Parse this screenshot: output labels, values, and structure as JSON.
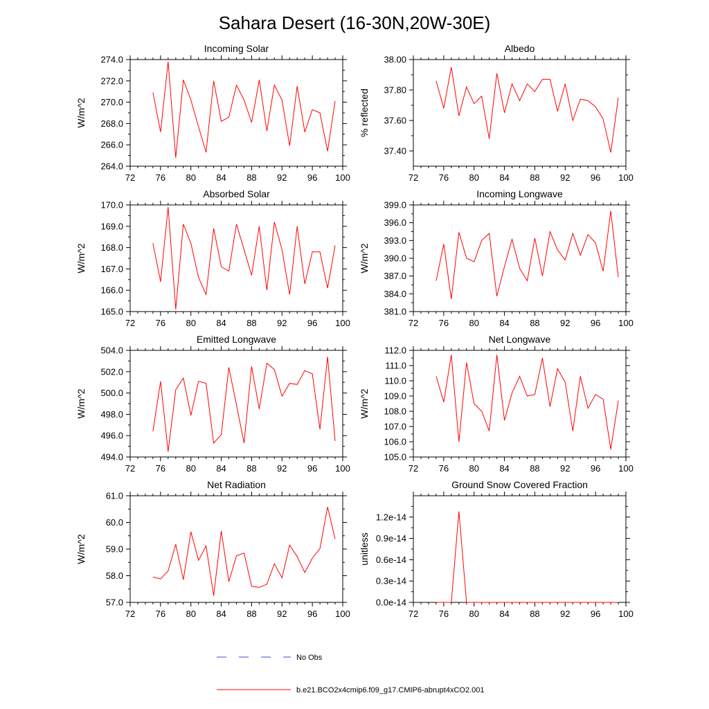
{
  "figure": {
    "title": "Sahara Desert (16-30N,20W-30E)",
    "legend": [
      {
        "label": "No Obs",
        "color": "#3a4fd0",
        "style": "dashed"
      },
      {
        "label": "b.e21.BCO2x4cmip6.f09_g17.CMIP6-abrupt4xCO2.001",
        "color": "#ff0000",
        "style": "solid"
      }
    ]
  },
  "chart_data": [
    {
      "type": "line",
      "title": "Incoming Solar",
      "ylabel": "W/m^2",
      "xlabel": "",
      "xlim": [
        72,
        100
      ],
      "xticks": [
        "72",
        "76",
        "80",
        "84",
        "88",
        "92",
        "96",
        "100"
      ],
      "ylim": [
        264,
        274
      ],
      "yticks": [
        "264.0",
        "266.0",
        "268.0",
        "270.0",
        "272.0",
        "274.0"
      ],
      "x": [
        75,
        76,
        77,
        78,
        79,
        80,
        81,
        82,
        83,
        84,
        85,
        86,
        87,
        88,
        89,
        90,
        91,
        92,
        93,
        94,
        95,
        96,
        97,
        98,
        99
      ],
      "series": [
        {
          "name": "b.e21.BCO2x4cmip6.f09_g17.CMIP6-abrupt4xCO2.001",
          "color": "#ff0000",
          "values": [
            270.9,
            267.2,
            273.8,
            264.8,
            272.1,
            270.2,
            267.7,
            265.3,
            272.0,
            268.2,
            268.6,
            271.6,
            270.2,
            268.1,
            272.1,
            267.3,
            271.6,
            270.2,
            265.9,
            271.5,
            267.2,
            269.3,
            269.0,
            265.4,
            270.1
          ]
        }
      ]
    },
    {
      "type": "line",
      "title": "Albedo",
      "ylabel": "% reflected",
      "xlabel": "",
      "xlim": [
        72,
        100
      ],
      "xticks": [
        "72",
        "76",
        "80",
        "84",
        "88",
        "92",
        "96",
        "100"
      ],
      "ylim": [
        37.3,
        38.0
      ],
      "yticks": [
        "37.40",
        "37.60",
        "37.80",
        "38.00"
      ],
      "x": [
        75,
        76,
        77,
        78,
        79,
        80,
        81,
        82,
        83,
        84,
        85,
        86,
        87,
        88,
        89,
        90,
        91,
        92,
        93,
        94,
        95,
        96,
        97,
        98,
        99
      ],
      "series": [
        {
          "name": "b.e21.BCO2x4cmip6.f09_g17.CMIP6-abrupt4xCO2.001",
          "color": "#ff0000",
          "values": [
            37.86,
            37.68,
            37.95,
            37.63,
            37.82,
            37.71,
            37.76,
            37.48,
            37.91,
            37.65,
            37.84,
            37.73,
            37.84,
            37.79,
            37.87,
            37.87,
            37.66,
            37.84,
            37.6,
            37.74,
            37.73,
            37.69,
            37.61,
            37.39,
            37.75
          ]
        }
      ]
    },
    {
      "type": "line",
      "title": "Absorbed Solar",
      "ylabel": "W/m^2",
      "xlabel": "",
      "xlim": [
        72,
        100
      ],
      "xticks": [
        "72",
        "76",
        "80",
        "84",
        "88",
        "92",
        "96",
        "100"
      ],
      "ylim": [
        165,
        170
      ],
      "yticks": [
        "165.0",
        "166.0",
        "167.0",
        "168.0",
        "169.0",
        "170.0"
      ],
      "x": [
        75,
        76,
        77,
        78,
        79,
        80,
        81,
        82,
        83,
        84,
        85,
        86,
        87,
        88,
        89,
        90,
        91,
        92,
        93,
        94,
        95,
        96,
        97,
        98,
        99
      ],
      "series": [
        {
          "name": "b.e21.BCO2x4cmip6.f09_g17.CMIP6-abrupt4xCO2.001",
          "color": "#ff0000",
          "values": [
            168.2,
            166.4,
            169.9,
            165.1,
            169.1,
            168.2,
            166.6,
            165.8,
            168.9,
            167.1,
            166.9,
            169.1,
            167.9,
            166.7,
            169.0,
            166.0,
            169.2,
            167.9,
            165.8,
            169.0,
            166.3,
            167.8,
            167.8,
            166.1,
            168.1
          ]
        }
      ]
    },
    {
      "type": "line",
      "title": "Incoming Longwave",
      "ylabel": "W/m^2",
      "xlabel": "",
      "xlim": [
        72,
        100
      ],
      "xticks": [
        "72",
        "76",
        "80",
        "84",
        "88",
        "92",
        "96",
        "100"
      ],
      "ylim": [
        381,
        399
      ],
      "yticks": [
        "381.0",
        "384.0",
        "387.0",
        "390.0",
        "393.0",
        "396.0",
        "399.0"
      ],
      "x": [
        75,
        76,
        77,
        78,
        79,
        80,
        81,
        82,
        83,
        84,
        85,
        86,
        87,
        88,
        89,
        90,
        91,
        92,
        93,
        94,
        95,
        96,
        97,
        98,
        99
      ],
      "series": [
        {
          "name": "b.e21.BCO2x4cmip6.f09_g17.CMIP6-abrupt4xCO2.001",
          "color": "#ff0000",
          "values": [
            386.2,
            392.4,
            383.1,
            394.4,
            390.0,
            389.4,
            393.0,
            394.2,
            383.6,
            388.6,
            393.2,
            388.3,
            386.2,
            393.4,
            387.0,
            394.5,
            391.4,
            389.7,
            394.2,
            390.5,
            394.0,
            392.6,
            387.8,
            398.0,
            386.8
          ]
        }
      ]
    },
    {
      "type": "line",
      "title": "Emitted Longwave",
      "ylabel": "W/m^2",
      "xlabel": "",
      "xlim": [
        72,
        100
      ],
      "xticks": [
        "72",
        "76",
        "80",
        "84",
        "88",
        "92",
        "96",
        "100"
      ],
      "ylim": [
        494,
        504
      ],
      "yticks": [
        "494.0",
        "496.0",
        "498.0",
        "500.0",
        "502.0",
        "504.0"
      ],
      "x": [
        75,
        76,
        77,
        78,
        79,
        80,
        81,
        82,
        83,
        84,
        85,
        86,
        87,
        88,
        89,
        90,
        91,
        92,
        93,
        94,
        95,
        96,
        97,
        98,
        99
      ],
      "series": [
        {
          "name": "b.e21.BCO2x4cmip6.f09_g17.CMIP6-abrupt4xCO2.001",
          "color": "#ff0000",
          "values": [
            496.4,
            501.1,
            494.5,
            500.3,
            501.4,
            497.9,
            501.1,
            500.9,
            495.3,
            496.1,
            502.4,
            498.9,
            495.3,
            502.5,
            498.5,
            502.8,
            502.2,
            499.7,
            500.9,
            500.8,
            502.1,
            501.8,
            496.6,
            503.4,
            495.5
          ]
        }
      ]
    },
    {
      "type": "line",
      "title": "Net Longwave",
      "ylabel": "W/m^2",
      "xlabel": "",
      "xlim": [
        72,
        100
      ],
      "xticks": [
        "72",
        "76",
        "80",
        "84",
        "88",
        "92",
        "96",
        "100"
      ],
      "ylim": [
        105,
        112
      ],
      "yticks": [
        "105.0",
        "106.0",
        "107.0",
        "108.0",
        "109.0",
        "110.0",
        "111.0",
        "112.0"
      ],
      "x": [
        75,
        76,
        77,
        78,
        79,
        80,
        81,
        82,
        83,
        84,
        85,
        86,
        87,
        88,
        89,
        90,
        91,
        92,
        93,
        94,
        95,
        96,
        97,
        98,
        99
      ],
      "series": [
        {
          "name": "b.e21.BCO2x4cmip6.f09_g17.CMIP6-abrupt4xCO2.001",
          "color": "#ff0000",
          "values": [
            110.3,
            108.6,
            111.7,
            106.0,
            111.2,
            108.5,
            108.0,
            106.7,
            111.7,
            107.4,
            109.2,
            110.3,
            109.0,
            109.1,
            111.5,
            108.3,
            110.8,
            109.9,
            106.7,
            110.3,
            108.2,
            109.1,
            108.8,
            105.5,
            108.7
          ]
        }
      ]
    },
    {
      "type": "line",
      "title": "Net Radiation",
      "ylabel": "W/m^2",
      "xlabel": "",
      "xlim": [
        72,
        100
      ],
      "xticks": [
        "72",
        "76",
        "80",
        "84",
        "88",
        "92",
        "96",
        "100"
      ],
      "ylim": [
        57,
        61
      ],
      "yticks": [
        "57.0",
        "58.0",
        "59.0",
        "60.0",
        "61.0"
      ],
      "x": [
        75,
        76,
        77,
        78,
        79,
        80,
        81,
        82,
        83,
        84,
        85,
        86,
        87,
        88,
        89,
        90,
        91,
        92,
        93,
        94,
        95,
        96,
        97,
        98,
        99
      ],
      "series": [
        {
          "name": "b.e21.BCO2x4cmip6.f09_g17.CMIP6-abrupt4xCO2.001",
          "color": "#ff0000",
          "values": [
            57.95,
            57.88,
            58.18,
            59.18,
            57.85,
            59.65,
            58.58,
            59.12,
            57.25,
            59.68,
            57.78,
            58.75,
            58.85,
            57.6,
            57.56,
            57.68,
            58.45,
            57.92,
            59.15,
            58.72,
            58.12,
            58.66,
            59.02,
            60.58,
            59.38
          ]
        }
      ]
    },
    {
      "type": "line",
      "title": "Ground Snow Covered Fraction",
      "ylabel": "unitless",
      "xlabel": "",
      "xlim": [
        72,
        100
      ],
      "xticks": [
        "72",
        "76",
        "80",
        "84",
        "88",
        "92",
        "96",
        "100"
      ],
      "ylim": [
        0,
        1.5e-14
      ],
      "yticks": [
        "0.0e-14",
        "0.3e-14",
        "0.6e-14",
        "0.9e-14",
        "1.2e-14"
      ],
      "ytick_values": [
        0,
        3e-15,
        6e-15,
        9e-15,
        1.2e-14
      ],
      "x": [
        75,
        76,
        77,
        78,
        79,
        80,
        81,
        82,
        83,
        84,
        85,
        86,
        87,
        88,
        89,
        90,
        91,
        92,
        93,
        94,
        95,
        96,
        97,
        98,
        99
      ],
      "series": [
        {
          "name": "b.e21.BCO2x4cmip6.f09_g17.CMIP6-abrupt4xCO2.001",
          "color": "#ff0000",
          "values": [
            0,
            0,
            0,
            1.28e-14,
            0,
            0,
            0,
            0,
            0,
            0,
            0,
            0,
            0,
            0,
            0,
            0,
            0,
            0,
            0,
            0,
            0,
            0,
            0,
            0,
            0
          ]
        }
      ]
    }
  ]
}
